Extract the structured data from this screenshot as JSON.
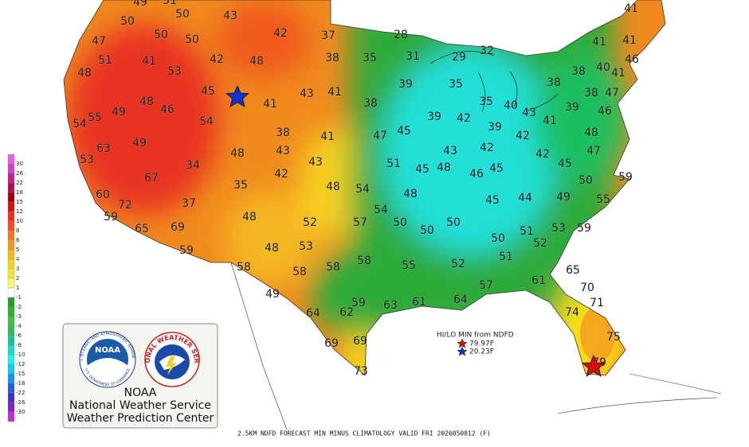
{
  "map": {
    "temperature_labels": [
      49,
      51,
      50,
      43,
      50,
      50,
      50,
      42,
      37,
      28,
      47,
      51,
      41,
      42,
      48,
      38,
      35,
      31,
      29,
      32,
      41,
      41,
      41,
      46,
      48,
      53,
      40,
      41,
      38,
      38,
      39,
      35,
      45,
      43,
      41,
      38,
      47,
      48,
      46,
      41,
      38,
      35,
      40,
      43,
      39,
      49,
      55,
      54,
      54,
      39,
      42,
      41,
      46,
      39,
      38,
      41,
      47,
      45,
      42,
      48,
      63,
      49,
      43,
      43,
      42,
      47,
      53,
      48,
      43,
      51,
      45,
      48,
      46,
      45,
      42,
      45,
      59,
      34,
      67,
      42,
      50,
      35,
      48,
      54,
      48,
      60,
      72,
      37,
      45,
      44,
      49,
      55,
      59,
      54,
      48,
      52,
      57,
      50,
      50,
      65,
      69,
      50,
      51,
      53,
      59,
      48,
      53,
      50,
      52,
      59,
      58,
      51,
      58,
      58,
      55,
      52,
      58,
      65,
      61,
      57,
      49,
      70,
      59,
      63,
      61,
      64,
      71,
      64,
      62,
      74,
      75,
      69,
      69,
      73,
      79
    ]
  },
  "legend": {
    "ticks": [
      30,
      26,
      22,
      18,
      15,
      12,
      10,
      8,
      6,
      5,
      4,
      3,
      2,
      1,
      -1,
      -2,
      -3,
      -4,
      -6,
      -8,
      -10,
      -12,
      -15,
      -18,
      -22,
      -26,
      -30
    ],
    "colors": [
      "#e860e0",
      "#d040c8",
      "#c02090",
      "#b01050",
      "#a00010",
      "#d01010",
      "#e83020",
      "#f05020",
      "#f07820",
      "#f59a20",
      "#f5b820",
      "#f7d020",
      "#f0e630",
      "#f8f870",
      "#ffffff",
      "#1ca02a",
      "#28b030",
      "#40c040",
      "#30b868",
      "#20c0a0",
      "#20d8c8",
      "#20f0f0",
      "#18c8f8",
      "#1890f0",
      "#2060e0",
      "#4030c0",
      "#8020c8",
      "#c030d0"
    ]
  },
  "hi_lo": {
    "title": "HI/LO MIN from NDFD",
    "high": "79.97F",
    "low": "20.23F"
  },
  "logo": {
    "noaa_badge": "NOAA",
    "noaa_ring": "NATIONAL OCEANIC AND ATMOSPHERIC ADMINISTRATION",
    "noaa_ring_bottom": "U.S. DEPARTMENT OF COMMERCE",
    "nws_ring": "NATIONAL WEATHER SERVICE",
    "line1": "NOAA",
    "line2": "National Weather Service",
    "line3": "Weather Prediction Center"
  },
  "caption": "2.5KM NDFD FORECAST MIN MINUS CLIMATOLOGY VALID FRI 2026050812 (F)"
}
